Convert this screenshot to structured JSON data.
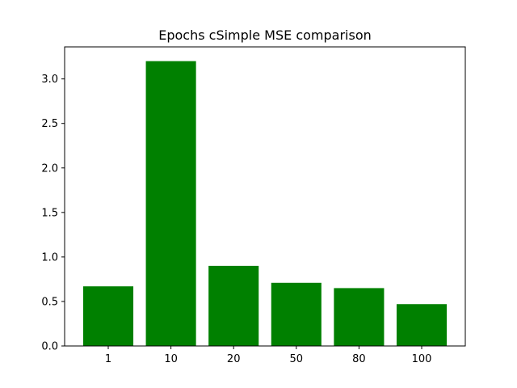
{
  "chart_data": {
    "type": "bar",
    "title": "Epochs cSimple MSE comparison",
    "xlabel": "",
    "ylabel": "",
    "categories": [
      "1",
      "10",
      "20",
      "50",
      "80",
      "100"
    ],
    "values": [
      0.67,
      3.2,
      0.9,
      0.71,
      0.65,
      0.47
    ],
    "ylim": [
      0,
      3.36
    ],
    "yticks": [
      "0.0",
      "0.5",
      "1.0",
      "1.5",
      "2.0",
      "2.5",
      "3.0"
    ],
    "bar_color": "#008000",
    "grid": false,
    "legend": "none"
  }
}
